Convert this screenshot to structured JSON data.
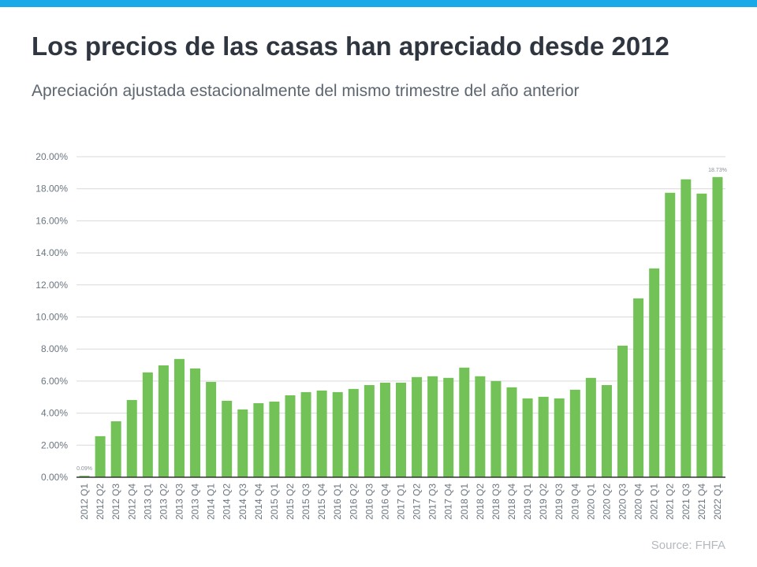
{
  "header": {
    "title": "Los precios de las casas han apreciado desde 2012",
    "subtitle": "Apreciación ajustada estacionalmente del mismo trimestre del año anterior"
  },
  "footer": {
    "source": "Source: FHFA"
  },
  "colors": {
    "topbar": "#1aa9e8",
    "bar": "#73c257",
    "grid": "#d9d9d9",
    "axis": "#333"
  },
  "chart_data": {
    "type": "bar",
    "title": "",
    "xlabel": "",
    "ylabel": "",
    "ylim": [
      0,
      20
    ],
    "grid": true,
    "yticks": [
      "0.00%",
      "2.00%",
      "4.00%",
      "6.00%",
      "8.00%",
      "10.00%",
      "12.00%",
      "14.00%",
      "16.00%",
      "18.00%",
      "20.00%"
    ],
    "categories": [
      "2012 Q1",
      "2012 Q2",
      "2012 Q3",
      "2012 Q4",
      "2013 Q1",
      "2013 Q2",
      "2013 Q3",
      "2013 Q4",
      "2014 Q1",
      "2014 Q2",
      "2014 Q3",
      "2014 Q4",
      "2015 Q1",
      "2015 Q2",
      "2015 Q3",
      "2015 Q4",
      "2016 Q1",
      "2016 Q2",
      "2016 Q3",
      "2016 Q4",
      "2017 Q1",
      "2017 Q2",
      "2017 Q3",
      "2017 Q4",
      "2018 Q1",
      "2018 Q2",
      "2018 Q3",
      "2018 Q4",
      "2019 Q1",
      "2019 Q2",
      "2019 Q3",
      "2019 Q4",
      "2020 Q1",
      "2020 Q2",
      "2020 Q3",
      "2020 Q4",
      "2021 Q1",
      "2021 Q2",
      "2021 Q3",
      "2021 Q4",
      "2022 Q1"
    ],
    "values": [
      0.09,
      2.56,
      3.49,
      4.82,
      6.54,
      6.98,
      7.38,
      6.79,
      5.95,
      4.77,
      4.23,
      4.62,
      4.72,
      5.11,
      5.31,
      5.41,
      5.31,
      5.51,
      5.75,
      5.9,
      5.9,
      6.25,
      6.3,
      6.2,
      6.84,
      6.3,
      6.0,
      5.61,
      4.92,
      5.02,
      4.92,
      5.46,
      6.2,
      5.75,
      8.21,
      11.16,
      13.03,
      17.75,
      18.59,
      17.7,
      18.73
    ],
    "data_labels": [
      {
        "index": 0,
        "text": "0.09%"
      },
      {
        "index": 40,
        "text": "18.73%"
      }
    ]
  }
}
